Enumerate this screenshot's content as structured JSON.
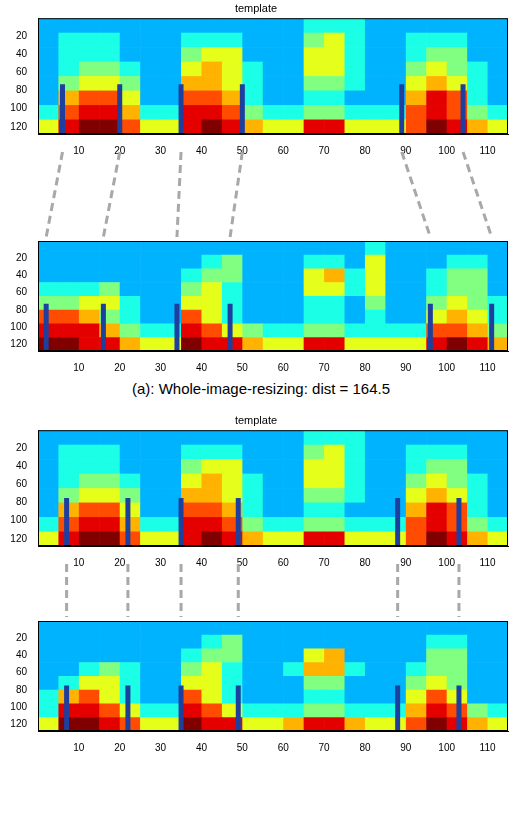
{
  "chart_data": [
    {
      "type": "heatmap",
      "title": "template",
      "xlim": [
        0,
        115
      ],
      "xticks": [
        10,
        20,
        30,
        40,
        50,
        60,
        70,
        80,
        90,
        100,
        110
      ],
      "ylim": [
        128,
        0
      ],
      "yticks": [
        20,
        40,
        60,
        80,
        100,
        120
      ],
      "x_edges": [
        0,
        5,
        10,
        15,
        20,
        25,
        30,
        35,
        40,
        45,
        50,
        55,
        60,
        65,
        70,
        75,
        80,
        85,
        90,
        95,
        100,
        105,
        110,
        115
      ],
      "y_edges": [
        0,
        16,
        32,
        48,
        64,
        80,
        96,
        112,
        128
      ],
      "clim": [
        0,
        10
      ],
      "cells": [
        [
          3,
          3,
          3,
          3,
          3,
          3,
          3,
          3,
          3,
          3,
          3,
          3,
          3,
          4,
          4,
          4,
          3,
          3,
          3,
          3,
          3,
          3,
          3
        ],
        [
          3,
          4,
          4,
          4,
          3,
          3,
          3,
          4,
          4,
          4,
          3,
          3,
          3,
          5,
          6,
          4,
          3,
          3,
          4,
          4,
          4,
          3,
          3
        ],
        [
          3,
          4,
          4,
          4,
          3,
          3,
          3,
          5,
          6,
          6,
          3,
          3,
          3,
          6,
          6,
          4,
          3,
          3,
          4,
          5,
          5,
          3,
          3
        ],
        [
          3,
          4,
          5,
          5,
          4,
          3,
          3,
          6,
          7,
          6,
          4,
          3,
          3,
          6,
          6,
          4,
          3,
          3,
          5,
          6,
          5,
          4,
          3
        ],
        [
          3,
          5,
          6,
          6,
          5,
          3,
          3,
          7,
          7,
          6,
          4,
          3,
          3,
          5,
          5,
          4,
          3,
          3,
          6,
          7,
          6,
          4,
          3
        ],
        [
          3,
          7,
          8,
          8,
          6,
          3,
          3,
          8,
          8,
          7,
          4,
          3,
          3,
          4,
          4,
          3,
          3,
          3,
          7,
          9,
          8,
          4,
          3
        ],
        [
          4,
          8,
          9,
          9,
          7,
          4,
          4,
          9,
          9,
          8,
          5,
          4,
          4,
          5,
          5,
          4,
          4,
          4,
          8,
          9,
          8,
          5,
          4
        ],
        [
          6,
          9,
          10,
          10,
          8,
          6,
          6,
          9,
          10,
          9,
          7,
          6,
          6,
          9,
          9,
          6,
          6,
          6,
          8,
          10,
          9,
          7,
          6
        ]
      ],
      "boundaries": {
        "x": [
          6,
          20,
          35,
          50,
          89,
          104
        ],
        "y": [
          73,
          128
        ],
        "color": "#1f3f9f"
      }
    },
    {
      "type": "heatmap",
      "xlim": [
        0,
        115
      ],
      "xticks": [
        10,
        20,
        30,
        40,
        50,
        60,
        70,
        80,
        90,
        100,
        110
      ],
      "ylim": [
        128,
        0
      ],
      "yticks": [
        20,
        40,
        60,
        80,
        100,
        120
      ],
      "x_edges": [
        0,
        5,
        10,
        15,
        20,
        25,
        30,
        35,
        40,
        45,
        50,
        55,
        60,
        65,
        70,
        75,
        80,
        85,
        90,
        95,
        100,
        105,
        110,
        115
      ],
      "y_edges": [
        0,
        16,
        32,
        48,
        64,
        80,
        96,
        112,
        128
      ],
      "clim": [
        0,
        10
      ],
      "cells": [
        [
          3,
          3,
          3,
          3,
          3,
          3,
          3,
          3,
          3,
          3,
          3,
          3,
          3,
          3,
          3,
          3,
          4,
          3,
          3,
          3,
          3,
          3,
          3
        ],
        [
          3,
          3,
          3,
          3,
          3,
          3,
          3,
          3,
          4,
          5,
          3,
          3,
          3,
          4,
          4,
          3,
          6,
          3,
          3,
          3,
          4,
          4,
          3
        ],
        [
          3,
          3,
          3,
          3,
          3,
          3,
          3,
          4,
          5,
          5,
          3,
          3,
          3,
          6,
          7,
          4,
          6,
          3,
          3,
          4,
          5,
          5,
          3
        ],
        [
          4,
          4,
          4,
          5,
          3,
          3,
          3,
          5,
          6,
          4,
          3,
          3,
          3,
          6,
          6,
          4,
          6,
          3,
          3,
          4,
          5,
          5,
          3
        ],
        [
          5,
          5,
          6,
          6,
          4,
          3,
          3,
          6,
          6,
          4,
          3,
          3,
          3,
          4,
          4,
          3,
          5,
          3,
          3,
          5,
          6,
          5,
          4
        ],
        [
          8,
          8,
          7,
          5,
          4,
          3,
          3,
          8,
          6,
          4,
          3,
          3,
          3,
          4,
          4,
          3,
          4,
          3,
          3,
          6,
          7,
          6,
          4
        ],
        [
          9,
          9,
          9,
          7,
          5,
          4,
          4,
          9,
          8,
          6,
          5,
          4,
          4,
          5,
          5,
          4,
          4,
          4,
          4,
          8,
          8,
          7,
          5
        ],
        [
          10,
          10,
          9,
          9,
          7,
          6,
          6,
          10,
          9,
          9,
          7,
          6,
          6,
          9,
          9,
          6,
          6,
          6,
          6,
          9,
          10,
          9,
          7
        ]
      ],
      "boundaries": {
        "x": [
          2,
          16,
          34,
          47,
          96,
          111
        ],
        "y": [
          73,
          128
        ],
        "color": "#1f3f9f"
      }
    },
    {
      "type": "heatmap",
      "title": "template",
      "xlim": [
        0,
        115
      ],
      "xticks": [
        10,
        20,
        30,
        40,
        50,
        60,
        70,
        80,
        90,
        100,
        110
      ],
      "ylim": [
        128,
        0
      ],
      "yticks": [
        20,
        40,
        60,
        80,
        100,
        120
      ],
      "x_edges": [
        0,
        5,
        10,
        15,
        20,
        25,
        30,
        35,
        40,
        45,
        50,
        55,
        60,
        65,
        70,
        75,
        80,
        85,
        90,
        95,
        100,
        105,
        110,
        115
      ],
      "y_edges": [
        0,
        16,
        32,
        48,
        64,
        80,
        96,
        112,
        128
      ],
      "clim": [
        0,
        10
      ],
      "cells": [
        [
          3,
          3,
          3,
          3,
          3,
          3,
          3,
          3,
          3,
          3,
          3,
          3,
          3,
          4,
          4,
          4,
          3,
          3,
          3,
          3,
          3,
          3,
          3
        ],
        [
          3,
          4,
          4,
          4,
          3,
          3,
          3,
          4,
          4,
          4,
          3,
          3,
          3,
          5,
          6,
          4,
          3,
          3,
          4,
          4,
          4,
          3,
          3
        ],
        [
          3,
          4,
          4,
          4,
          3,
          3,
          3,
          5,
          6,
          6,
          3,
          3,
          3,
          6,
          6,
          4,
          3,
          3,
          4,
          5,
          5,
          3,
          3
        ],
        [
          3,
          4,
          5,
          5,
          4,
          3,
          3,
          6,
          7,
          6,
          4,
          3,
          3,
          6,
          6,
          4,
          3,
          3,
          5,
          6,
          5,
          4,
          3
        ],
        [
          3,
          5,
          6,
          6,
          5,
          3,
          3,
          7,
          7,
          6,
          4,
          3,
          3,
          5,
          5,
          4,
          3,
          3,
          6,
          7,
          6,
          4,
          3
        ],
        [
          3,
          7,
          8,
          8,
          6,
          3,
          3,
          8,
          8,
          7,
          4,
          3,
          3,
          4,
          4,
          3,
          3,
          3,
          7,
          9,
          8,
          4,
          3
        ],
        [
          4,
          8,
          9,
          9,
          7,
          4,
          4,
          9,
          9,
          8,
          5,
          4,
          4,
          5,
          5,
          4,
          4,
          4,
          8,
          9,
          8,
          5,
          4
        ],
        [
          6,
          9,
          10,
          10,
          8,
          6,
          6,
          9,
          10,
          9,
          7,
          6,
          6,
          9,
          9,
          6,
          6,
          6,
          8,
          10,
          9,
          7,
          6
        ]
      ],
      "boundaries": {
        "x": [
          7,
          22,
          35,
          49,
          88,
          103
        ],
        "y": [
          75,
          128
        ],
        "color": "#1f3f9f"
      }
    },
    {
      "type": "heatmap",
      "xlim": [
        0,
        115
      ],
      "xticks": [
        10,
        20,
        30,
        40,
        50,
        60,
        70,
        80,
        90,
        100,
        110
      ],
      "ylim": [
        128,
        0
      ],
      "yticks": [
        20,
        40,
        60,
        80,
        100,
        120
      ],
      "x_edges": [
        0,
        5,
        10,
        15,
        20,
        25,
        30,
        35,
        40,
        45,
        50,
        55,
        60,
        65,
        70,
        75,
        80,
        85,
        90,
        95,
        100,
        105,
        110,
        115
      ],
      "y_edges": [
        0,
        16,
        32,
        48,
        64,
        80,
        96,
        112,
        128
      ],
      "clim": [
        0,
        10
      ],
      "cells": [
        [
          3,
          3,
          3,
          3,
          3,
          3,
          3,
          3,
          3,
          3,
          3,
          3,
          3,
          3,
          3,
          3,
          3,
          3,
          3,
          3,
          3,
          3,
          3
        ],
        [
          3,
          3,
          3,
          3,
          3,
          3,
          3,
          3,
          4,
          5,
          3,
          3,
          3,
          3,
          3,
          3,
          3,
          3,
          3,
          4,
          4,
          3,
          3
        ],
        [
          3,
          3,
          3,
          3,
          3,
          3,
          3,
          4,
          5,
          5,
          3,
          3,
          3,
          6,
          7,
          3,
          3,
          3,
          3,
          5,
          5,
          3,
          3
        ],
        [
          3,
          3,
          4,
          5,
          4,
          3,
          3,
          5,
          6,
          4,
          3,
          3,
          4,
          7,
          7,
          4,
          3,
          3,
          4,
          5,
          5,
          3,
          3
        ],
        [
          3,
          4,
          6,
          6,
          4,
          3,
          3,
          6,
          6,
          4,
          3,
          3,
          3,
          5,
          5,
          3,
          3,
          3,
          5,
          6,
          5,
          3,
          3
        ],
        [
          4,
          7,
          8,
          6,
          4,
          3,
          3,
          8,
          6,
          4,
          3,
          3,
          3,
          4,
          4,
          3,
          3,
          3,
          6,
          8,
          6,
          3,
          3
        ],
        [
          4,
          9,
          9,
          8,
          6,
          4,
          4,
          9,
          8,
          6,
          4,
          4,
          4,
          5,
          5,
          4,
          4,
          4,
          7,
          9,
          8,
          5,
          4
        ],
        [
          6,
          10,
          10,
          9,
          8,
          6,
          6,
          10,
          9,
          9,
          6,
          6,
          7,
          9,
          9,
          7,
          6,
          6,
          8,
          10,
          9,
          7,
          6
        ]
      ],
      "boundaries": {
        "x": [
          7,
          22,
          35,
          49,
          88,
          103
        ],
        "y": [
          75,
          128
        ],
        "color": "#1f3f9f"
      }
    }
  ],
  "caption": "(a): Whole-image-resizing: dist = 164.5"
}
